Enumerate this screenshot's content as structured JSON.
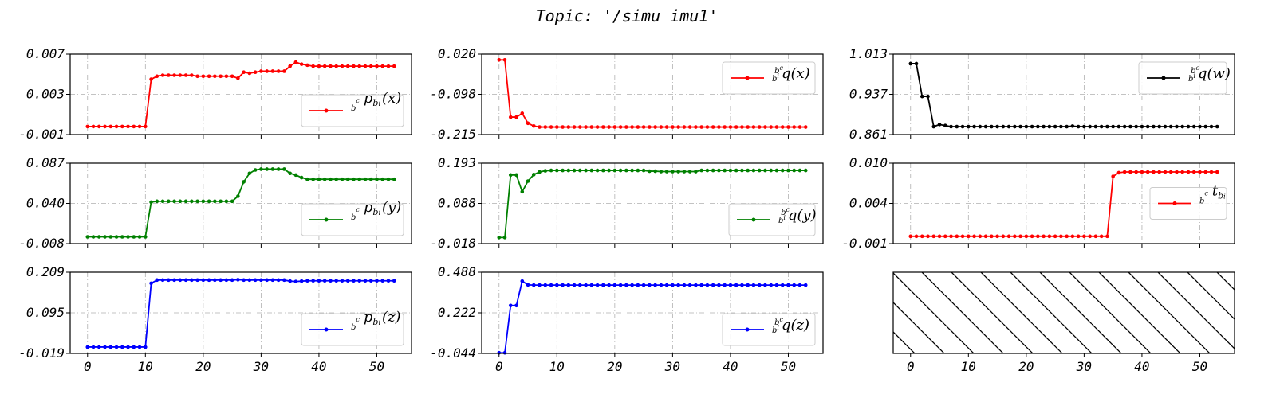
{
  "title": "Topic: '/simu_imu1'",
  "x_tick_labels": [
    "0",
    "10",
    "20",
    "30",
    "40",
    "50"
  ],
  "chart_data": [
    {
      "type": "line",
      "legend": {
        "label": "b^c p_{b^i}(x)",
        "placement": "lower-right"
      },
      "color": "#ff0000",
      "xlim": [
        -3,
        56
      ],
      "ylim": [
        -0.001,
        0.007
      ],
      "ytick_labels": [
        "0.007",
        "0.003",
        "-0.001"
      ],
      "grid": true,
      "y": [
        -0.0002,
        -0.0002,
        -0.0002,
        -0.0002,
        -0.0002,
        -0.0002,
        -0.0002,
        -0.0002,
        -0.0002,
        -0.0002,
        -0.0002,
        0.0045,
        0.0048,
        0.0049,
        0.0049,
        0.0049,
        0.0049,
        0.0049,
        0.0049,
        0.0048,
        0.0048,
        0.0048,
        0.0048,
        0.0048,
        0.0048,
        0.0048,
        0.0046,
        0.0052,
        0.0051,
        0.0052,
        0.0053,
        0.0053,
        0.0053,
        0.0053,
        0.0053,
        0.0058,
        0.0062,
        0.006,
        0.0059,
        0.0058,
        0.0058,
        0.0058,
        0.0058,
        0.0058,
        0.0058,
        0.0058,
        0.0058,
        0.0058,
        0.0058,
        0.0058,
        0.0058,
        0.0058,
        0.0058,
        0.0058
      ]
    },
    {
      "type": "line",
      "legend": {
        "label": "b^c b^i q(x)",
        "placement": "upper-right"
      },
      "color": "#ff0000",
      "xlim": [
        -3,
        56
      ],
      "ylim": [
        -0.215,
        0.02
      ],
      "ytick_labels": [
        "0.020",
        "-0.098",
        "-0.215"
      ],
      "grid": true,
      "y": [
        0.003,
        0.003,
        -0.164,
        -0.164,
        -0.153,
        -0.182,
        -0.19,
        -0.193,
        -0.193,
        -0.193,
        -0.193,
        -0.193,
        -0.193,
        -0.193,
        -0.193,
        -0.193,
        -0.193,
        -0.193,
        -0.193,
        -0.193,
        -0.193,
        -0.193,
        -0.193,
        -0.193,
        -0.193,
        -0.193,
        -0.193,
        -0.193,
        -0.193,
        -0.193,
        -0.193,
        -0.193,
        -0.193,
        -0.193,
        -0.193,
        -0.193,
        -0.193,
        -0.193,
        -0.193,
        -0.193,
        -0.193,
        -0.193,
        -0.193,
        -0.193,
        -0.193,
        -0.193,
        -0.193,
        -0.193,
        -0.193,
        -0.193,
        -0.193,
        -0.193,
        -0.193,
        -0.193
      ]
    },
    {
      "type": "line",
      "legend": {
        "label": "b^c b^i q(w)",
        "placement": "upper-right"
      },
      "color": "#000000",
      "xlim": [
        -3,
        56
      ],
      "ylim": [
        0.861,
        1.013
      ],
      "ytick_labels": [
        "1.013",
        "0.937",
        "0.861"
      ],
      "grid": true,
      "y": [
        0.995,
        0.995,
        0.933,
        0.933,
        0.876,
        0.88,
        0.878,
        0.876,
        0.876,
        0.876,
        0.876,
        0.876,
        0.876,
        0.876,
        0.876,
        0.876,
        0.876,
        0.876,
        0.876,
        0.876,
        0.876,
        0.876,
        0.876,
        0.876,
        0.876,
        0.876,
        0.876,
        0.876,
        0.877,
        0.876,
        0.876,
        0.876,
        0.876,
        0.876,
        0.876,
        0.876,
        0.876,
        0.876,
        0.876,
        0.876,
        0.876,
        0.876,
        0.876,
        0.876,
        0.876,
        0.876,
        0.876,
        0.876,
        0.876,
        0.876,
        0.876,
        0.876,
        0.876,
        0.876
      ]
    },
    {
      "type": "line",
      "legend": {
        "label": "b^c p_{b^i}(y)",
        "placement": "lower-right"
      },
      "color": "#008000",
      "xlim": [
        -3,
        56
      ],
      "ylim": [
        -0.008,
        0.087
      ],
      "ytick_labels": [
        "0.087",
        "0.040",
        "-0.008"
      ],
      "grid": true,
      "y": [
        0,
        0,
        0,
        0,
        0,
        0,
        0,
        0,
        0,
        0,
        0,
        0.041,
        0.042,
        0.042,
        0.042,
        0.042,
        0.042,
        0.042,
        0.042,
        0.042,
        0.042,
        0.042,
        0.042,
        0.042,
        0.042,
        0.042,
        0.048,
        0.065,
        0.075,
        0.079,
        0.08,
        0.08,
        0.08,
        0.08,
        0.08,
        0.075,
        0.073,
        0.07,
        0.068,
        0.068,
        0.068,
        0.068,
        0.068,
        0.068,
        0.068,
        0.068,
        0.068,
        0.068,
        0.068,
        0.068,
        0.068,
        0.068,
        0.068,
        0.068
      ]
    },
    {
      "type": "line",
      "legend": {
        "label": "b^c b^i q(y)",
        "placement": "lower-right"
      },
      "color": "#008000",
      "xlim": [
        -3,
        56
      ],
      "ylim": [
        -0.018,
        0.193
      ],
      "ytick_labels": [
        "0.193",
        "0.088",
        "-0.018"
      ],
      "grid": true,
      "y": [
        -0.002,
        -0.002,
        0.162,
        0.162,
        0.118,
        0.146,
        0.163,
        0.17,
        0.173,
        0.174,
        0.174,
        0.174,
        0.174,
        0.174,
        0.174,
        0.174,
        0.174,
        0.174,
        0.174,
        0.174,
        0.174,
        0.174,
        0.174,
        0.174,
        0.174,
        0.174,
        0.172,
        0.172,
        0.171,
        0.171,
        0.171,
        0.171,
        0.171,
        0.171,
        0.171,
        0.174,
        0.174,
        0.174,
        0.174,
        0.174,
        0.174,
        0.174,
        0.174,
        0.174,
        0.174,
        0.174,
        0.174,
        0.174,
        0.174,
        0.174,
        0.174,
        0.174,
        0.174,
        0.174
      ]
    },
    {
      "type": "line",
      "legend": {
        "label": "b^c t_{b^i}",
        "placement": "center-right"
      },
      "color": "#ff0000",
      "xlim": [
        -3,
        56
      ],
      "ylim": [
        -0.001,
        0.01
      ],
      "ytick_labels": [
        "0.010",
        "0.004",
        "-0.001"
      ],
      "grid": true,
      "y": [
        0,
        0,
        0,
        0,
        0,
        0,
        0,
        0,
        0,
        0,
        0,
        0,
        0,
        0,
        0,
        0,
        0,
        0,
        0,
        0,
        0,
        0,
        0,
        0,
        0,
        0,
        0,
        0,
        0,
        0,
        0,
        0,
        0,
        0,
        0,
        0.0082,
        0.0087,
        0.0088,
        0.0088,
        0.0088,
        0.0088,
        0.0088,
        0.0088,
        0.0088,
        0.0088,
        0.0088,
        0.0088,
        0.0088,
        0.0088,
        0.0088,
        0.0088,
        0.0088,
        0.0088,
        0.0088
      ]
    },
    {
      "type": "line",
      "legend": {
        "label": "b^c p_{b^i}(z)",
        "placement": "lower-right"
      },
      "color": "#0000ff",
      "xlim": [
        -3,
        56
      ],
      "ylim": [
        -0.019,
        0.209
      ],
      "ytick_labels": [
        "0.209",
        "0.095",
        "-0.019"
      ],
      "grid": true,
      "y": [
        -0.001,
        -0.001,
        -0.001,
        -0.001,
        -0.001,
        -0.001,
        -0.001,
        -0.001,
        -0.001,
        -0.001,
        -0.001,
        0.178,
        0.187,
        0.187,
        0.187,
        0.187,
        0.187,
        0.187,
        0.187,
        0.187,
        0.187,
        0.187,
        0.187,
        0.187,
        0.187,
        0.187,
        0.188,
        0.187,
        0.187,
        0.187,
        0.187,
        0.187,
        0.187,
        0.187,
        0.187,
        0.184,
        0.183,
        0.184,
        0.185,
        0.185,
        0.185,
        0.185,
        0.185,
        0.185,
        0.185,
        0.185,
        0.185,
        0.185,
        0.185,
        0.185,
        0.185,
        0.185,
        0.185,
        0.185
      ]
    },
    {
      "type": "line",
      "legend": {
        "label": "b^c b^i q(z)",
        "placement": "lower-right"
      },
      "color": "#0000ff",
      "xlim": [
        -3,
        56
      ],
      "ylim": [
        -0.044,
        0.488
      ],
      "ytick_labels": [
        "0.488",
        "0.222",
        "-0.044"
      ],
      "grid": true,
      "y": [
        -0.04,
        -0.04,
        0.27,
        0.27,
        0.43,
        0.405,
        0.404,
        0.404,
        0.404,
        0.404,
        0.404,
        0.404,
        0.404,
        0.404,
        0.404,
        0.404,
        0.404,
        0.404,
        0.404,
        0.404,
        0.404,
        0.404,
        0.404,
        0.404,
        0.404,
        0.404,
        0.404,
        0.404,
        0.404,
        0.404,
        0.404,
        0.404,
        0.404,
        0.404,
        0.404,
        0.404,
        0.404,
        0.404,
        0.404,
        0.404,
        0.404,
        0.404,
        0.404,
        0.404,
        0.404,
        0.404,
        0.404,
        0.404,
        0.404,
        0.404,
        0.404,
        0.404,
        0.404,
        0.404
      ]
    },
    {
      "type": "empty",
      "pattern": "diagonal-hatch",
      "xlim": [
        -3,
        56
      ],
      "grid": false
    }
  ]
}
